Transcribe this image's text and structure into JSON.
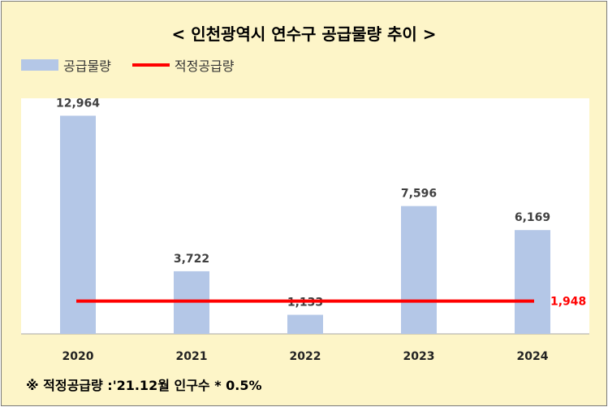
{
  "chart_data": {
    "type": "bar",
    "title": "< 인천광역시 연수구 공급물량 추이 >",
    "categories": [
      "2020",
      "2021",
      "2022",
      "2023",
      "2024"
    ],
    "series": [
      {
        "name": "공급물량",
        "type": "bar",
        "values": [
          12964,
          3722,
          1133,
          7596,
          6169
        ],
        "color": "#b4c7e7"
      }
    ],
    "reference_line": {
      "name": "적정공급량",
      "value": 1948,
      "color": "#ff0000"
    },
    "data_labels": [
      "12,964",
      "3,722",
      "1,133",
      "7,596",
      "6,169"
    ],
    "reference_label": "1,948",
    "ylim": [
      0,
      14000
    ],
    "grid": false,
    "legend_position": "top-left",
    "xlabel": "",
    "ylabel": ""
  },
  "footnote": "※ 적정공급량 :'21.12월 인구수 * 0.5%"
}
